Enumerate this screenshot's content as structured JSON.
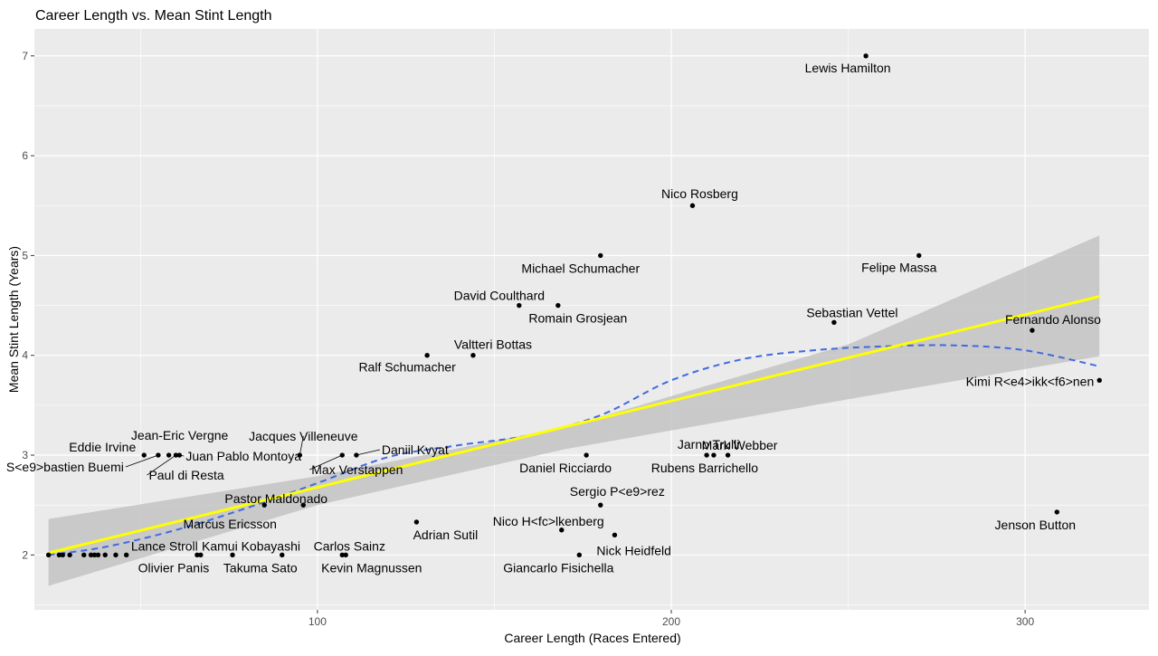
{
  "chart_data": {
    "type": "scatter",
    "title": "Career Length vs. Mean Stint Length",
    "xlabel": "Career Length (Races Entered)",
    "ylabel": "Mean Stint Length (Years)",
    "xlim": [
      20,
      335
    ],
    "ylim": [
      1.45,
      7.27
    ],
    "x_ticks": [
      100,
      200,
      300
    ],
    "y_ticks": [
      2,
      3,
      4,
      5,
      6,
      7
    ],
    "grid": true,
    "colors": {
      "panel": "#ebebeb",
      "grid": "#ffffff",
      "points": "#000000",
      "linear_fit": "#ffff00",
      "ci_ribbon": "#bebebe",
      "loess_fit": "#4169e1"
    },
    "points": [
      {
        "x": 255,
        "y": 7.0,
        "label": "Lewis Hamilton"
      },
      {
        "x": 206,
        "y": 5.5,
        "label": "Nico Rosberg"
      },
      {
        "x": 180,
        "y": 5.0,
        "label": "Michael Schumacher"
      },
      {
        "x": 270,
        "y": 5.0,
        "label": "Felipe Massa"
      },
      {
        "x": 157,
        "y": 4.5,
        "label": "David Coulthard"
      },
      {
        "x": 168,
        "y": 4.5,
        "label": "Romain Grosjean"
      },
      {
        "x": 246,
        "y": 4.33,
        "label": "Sebastian Vettel"
      },
      {
        "x": 302,
        "y": 4.25,
        "label": "Fernando Alonso"
      },
      {
        "x": 131,
        "y": 4.0,
        "label": "Ralf Schumacher"
      },
      {
        "x": 144,
        "y": 4.0,
        "label": "Valtteri Bottas"
      },
      {
        "x": 321,
        "y": 3.75,
        "label": "Kimi R<e4>ikk<f6>nen"
      },
      {
        "x": 51,
        "y": 3.0,
        "label": "Eddie Irvine"
      },
      {
        "x": 55,
        "y": 3.0,
        "label": "S<e9>bastien Buemi"
      },
      {
        "x": 58,
        "y": 3.0,
        "label": "Jean-Eric Vergne"
      },
      {
        "x": 60,
        "y": 3.0,
        "label": "Paul di Resta"
      },
      {
        "x": 61,
        "y": 3.0,
        "label": "Juan Pablo Montoya"
      },
      {
        "x": 95,
        "y": 3.0,
        "label": "Jacques Villeneuve"
      },
      {
        "x": 107,
        "y": 3.0,
        "label": "Max Verstappen"
      },
      {
        "x": 111,
        "y": 3.0,
        "label": "Daniil Kvyat"
      },
      {
        "x": 176,
        "y": 3.0,
        "label": "Daniel Ricciardo"
      },
      {
        "x": 210,
        "y": 3.0,
        "label": "Jarno Trulli"
      },
      {
        "x": 212,
        "y": 3.0,
        "label": "Rubens Barrichello"
      },
      {
        "x": 216,
        "y": 3.0,
        "label": "Mark Webber"
      },
      {
        "x": 96,
        "y": 2.5,
        "label": "Pastor Maldonado"
      },
      {
        "x": 85,
        "y": 2.5,
        "label": "Marcus Ericsson"
      },
      {
        "x": 180,
        "y": 2.5,
        "label": "Sergio P<e9>rez"
      },
      {
        "x": 309,
        "y": 2.43,
        "label": "Jenson Button"
      },
      {
        "x": 128,
        "y": 2.33,
        "label": "Adrian Sutil"
      },
      {
        "x": 169,
        "y": 2.25,
        "label": "Nico H<fc>lkenberg"
      },
      {
        "x": 184,
        "y": 2.2,
        "label": "Nick Heidfeld"
      },
      {
        "x": 67,
        "y": 2.0,
        "label": "Lance Stroll"
      },
      {
        "x": 66,
        "y": 2.0,
        "label": "Olivier Panis"
      },
      {
        "x": 76,
        "y": 2.0,
        "label": "Kamui Kobayashi"
      },
      {
        "x": 90,
        "y": 2.0,
        "label": "Takuma Sato"
      },
      {
        "x": 107,
        "y": 2.0,
        "label": "Carlos Sainz"
      },
      {
        "x": 108,
        "y": 2.0,
        "label": "Kevin Magnussen"
      },
      {
        "x": 174,
        "y": 2.0,
        "label": "Giancarlo Fisichella"
      },
      {
        "x": 24,
        "y": 2.0,
        "label": ""
      },
      {
        "x": 27,
        "y": 2.0,
        "label": ""
      },
      {
        "x": 28,
        "y": 2.0,
        "label": ""
      },
      {
        "x": 30,
        "y": 2.0,
        "label": ""
      },
      {
        "x": 34,
        "y": 2.0,
        "label": ""
      },
      {
        "x": 36,
        "y": 2.0,
        "label": ""
      },
      {
        "x": 37,
        "y": 2.0,
        "label": ""
      },
      {
        "x": 38,
        "y": 2.0,
        "label": ""
      },
      {
        "x": 40,
        "y": 2.0,
        "label": ""
      },
      {
        "x": 43,
        "y": 2.0,
        "label": ""
      },
      {
        "x": 46,
        "y": 2.0,
        "label": ""
      }
    ],
    "linear_fit": {
      "x": [
        24,
        321
      ],
      "y": [
        2.02,
        4.59
      ]
    },
    "ci_band": {
      "x": [
        24,
        100,
        170,
        250,
        321
      ],
      "lower": [
        1.69,
        2.5,
        3.06,
        3.56,
        3.99
      ],
      "upper": [
        2.36,
        2.79,
        3.28,
        4.11,
        5.2
      ]
    },
    "loess_fit": {
      "x": [
        24,
        40,
        60,
        80,
        100,
        120,
        140,
        160,
        180,
        200,
        220,
        240,
        260,
        280,
        300,
        321
      ],
      "y": [
        2.0,
        2.08,
        2.25,
        2.47,
        2.72,
        2.98,
        3.1,
        3.2,
        3.4,
        3.75,
        3.96,
        4.05,
        4.09,
        4.1,
        4.05,
        3.89
      ]
    }
  }
}
